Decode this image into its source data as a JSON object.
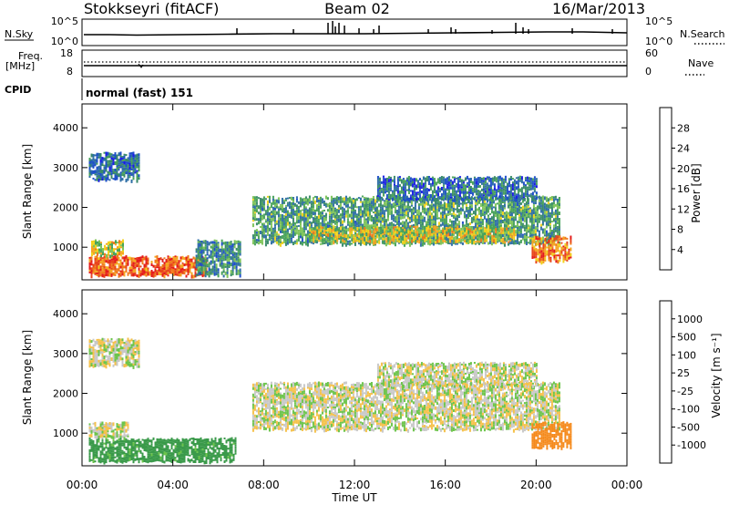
{
  "header": {
    "station": "Stokkseyri (fitACF)",
    "beam": "Beam 02",
    "date": "16/Mar/2013"
  },
  "noise_panel": {
    "left_label": "N.Sky",
    "right_label": "N.Search",
    "left_ticks": [
      "10^5",
      "10^0"
    ],
    "right_ticks": [
      "10^5",
      "10^0"
    ]
  },
  "freq_panel": {
    "left_label_line1": "Freq.",
    "left_label_line2": "[MHz]",
    "right_label": "Nave",
    "left_ticks": [
      "18",
      "8"
    ],
    "right_ticks": [
      "60",
      "0"
    ]
  },
  "cpid_panel": {
    "label": "CPID",
    "text": "normal (fast) 151"
  },
  "axes": {
    "ylabel": "Slant Range [km]",
    "xlabel": "Time UT",
    "y_ticks": [
      "1000",
      "2000",
      "3000",
      "4000"
    ],
    "x_ticks": [
      "00:00",
      "04:00",
      "08:00",
      "12:00",
      "16:00",
      "20:00",
      "00:00"
    ]
  },
  "colorbars": {
    "power": {
      "label": "Power [dB]",
      "ticks": [
        "4",
        "8",
        "12",
        "16",
        "20",
        "24",
        "28"
      ],
      "colors": [
        "#1c1ce6",
        "#1f50c8",
        "#2f6fa6",
        "#3a8a6a",
        "#49a35a",
        "#7fc45a",
        "#f2d21c",
        "#f5a623",
        "#f07a1c",
        "#e8461c",
        "#e41c1c"
      ]
    },
    "velocity": {
      "label": "Velocity [m s⁻¹]",
      "ticks": [
        "1000",
        "500",
        "100",
        "25",
        "-25",
        "-100",
        "-500",
        "-1000"
      ],
      "colors": [
        "#2a3fb0",
        "#2c5aa0",
        "#2f7a6a",
        "#3a9a4a",
        "#6cc44a",
        "#c8c8c8",
        "#c8c8c8",
        "#f5c14a",
        "#f58a1c",
        "#ef5a1c",
        "#e41c1c"
      ]
    }
  },
  "chart_data": [
    {
      "type": "heatmap",
      "title": "Power [dB]",
      "xlabel": "Time UT",
      "ylabel": "Slant Range [km]",
      "xlim": [
        "00:00",
        "24:00"
      ],
      "ylim": [
        180,
        4600
      ],
      "regions": [
        {
          "t0": 0.3,
          "t1": 5.5,
          "r0": 300,
          "r1": 800,
          "value": 26
        },
        {
          "t0": 0.4,
          "t1": 1.8,
          "r0": 800,
          "r1": 1200,
          "value": 18
        },
        {
          "t0": 5.0,
          "t1": 7.0,
          "r0": 300,
          "r1": 1200,
          "value": 10
        },
        {
          "t0": 7.5,
          "t1": 21.0,
          "r0": 1100,
          "r1": 2300,
          "value": 12
        },
        {
          "t0": 10.0,
          "t1": 19.0,
          "r0": 1150,
          "r1": 1550,
          "value": 18
        },
        {
          "t0": 13.0,
          "t1": 20.0,
          "r0": 2200,
          "r1": 2800,
          "value": 8
        },
        {
          "t0": 19.8,
          "t1": 21.5,
          "r0": 650,
          "r1": 1300,
          "value": 24
        },
        {
          "t0": 0.3,
          "t1": 2.5,
          "r0": 2700,
          "r1": 3400,
          "value": 8
        }
      ]
    },
    {
      "type": "heatmap",
      "title": "Velocity [m s⁻¹]",
      "xlabel": "Time UT",
      "ylabel": "Slant Range [km]",
      "xlim": [
        "00:00",
        "24:00"
      ],
      "ylim": [
        180,
        4600
      ],
      "regions": [
        {
          "t0": 0.3,
          "t1": 6.8,
          "r0": 300,
          "r1": 900,
          "value": 150
        },
        {
          "t0": 0.3,
          "t1": 2.0,
          "r0": 900,
          "r1": 1300,
          "value": 0
        },
        {
          "t0": 7.5,
          "t1": 21.0,
          "r0": 1100,
          "r1": 2300,
          "value": 0
        },
        {
          "t0": 13.0,
          "t1": 20.0,
          "r0": 2200,
          "r1": 2800,
          "value": 0
        },
        {
          "t0": 19.8,
          "t1": 21.5,
          "r0": 650,
          "r1": 1300,
          "value": -400
        },
        {
          "t0": 0.3,
          "t1": 2.5,
          "r0": 2700,
          "r1": 3400,
          "value": 0
        }
      ]
    }
  ]
}
